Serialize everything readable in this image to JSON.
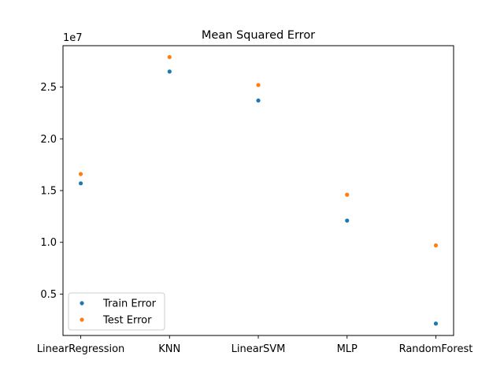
{
  "chart_data": {
    "type": "scatter",
    "title": "Mean Squared Error",
    "xlabel": "",
    "ylabel": "",
    "offset_text": "1e7",
    "categories": [
      "LinearRegression",
      "KNN",
      "LinearSVM",
      "MLP",
      "RandomForest"
    ],
    "series": [
      {
        "name": "Train Error",
        "color": "#1f77b4",
        "values": [
          15700000,
          26500000,
          23700000,
          12100000,
          2150000
        ]
      },
      {
        "name": "Test Error",
        "color": "#ff7f0e",
        "values": [
          16600000,
          27900000,
          25200000,
          14600000,
          9700000
        ]
      }
    ],
    "yticks": [
      5000000,
      10000000,
      15000000,
      20000000,
      25000000
    ],
    "ytick_labels": [
      "0.5",
      "1.0",
      "1.5",
      "2.0",
      "2.5"
    ],
    "ylim": [
      1000000,
      29000000
    ],
    "grid": false,
    "legend_position": "lower-left"
  }
}
